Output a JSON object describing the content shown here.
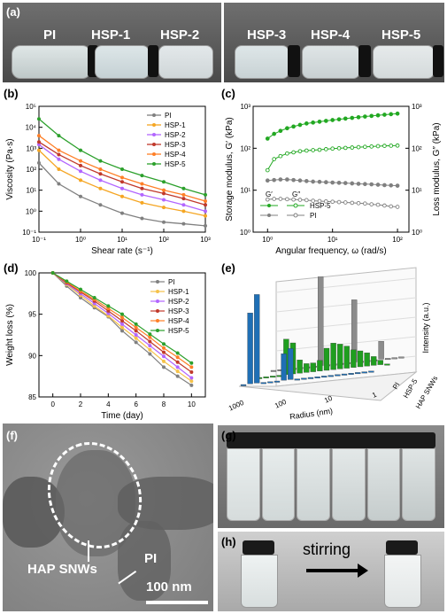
{
  "panel_labels": {
    "a": "(a)",
    "b": "(b)",
    "c": "(c)",
    "d": "(d)",
    "e": "(e)",
    "f": "(f)",
    "g": "(g)",
    "h": "(h)"
  },
  "photo_a": {
    "labels": [
      "PI",
      "HSP-1",
      "HSP-2",
      "HSP-3",
      "HSP-4",
      "HSP-5"
    ]
  },
  "photo_f": {
    "annotation_hap": "HAP SNWs",
    "annotation_pi": "PI",
    "scale_bar": "100 nm"
  },
  "photo_h": {
    "arrow_label": "stirring"
  },
  "chart_data": [
    {
      "id": "b",
      "type": "line",
      "xlabel": "Shear rate (s⁻¹)",
      "ylabel": "Viscosity (Pa·s)",
      "x_scale": "log",
      "y_scale": "log",
      "xlim": [
        0.1,
        1000
      ],
      "ylim": [
        0.1,
        100000
      ],
      "x_ticks": [
        "10⁻¹",
        "10⁰",
        "10¹",
        "10²",
        "10³"
      ],
      "y_ticks": [
        "10⁻¹",
        "10⁰",
        "10¹",
        "10²",
        "10³",
        "10⁴",
        "10⁵"
      ],
      "legend": "top-right",
      "x": [
        0.1,
        0.3,
        1,
        3,
        10,
        30,
        100,
        300,
        1000
      ],
      "series": [
        {
          "name": "PI",
          "color": "#808080",
          "values": [
            200,
            20,
            5,
            2,
            0.8,
            0.45,
            0.3,
            0.25,
            0.2
          ]
        },
        {
          "name": "HSP-1",
          "color": "#f5a623",
          "values": [
            800,
            100,
            30,
            12,
            5,
            2.5,
            1.5,
            1,
            0.6
          ]
        },
        {
          "name": "HSP-2",
          "color": "#b266ff",
          "values": [
            1500,
            300,
            80,
            30,
            12,
            6,
            3.5,
            2,
            1
          ]
        },
        {
          "name": "HSP-3",
          "color": "#c0392b",
          "values": [
            2000,
            500,
            150,
            60,
            25,
            12,
            7,
            4,
            2
          ]
        },
        {
          "name": "HSP-4",
          "color": "#ff7f27",
          "values": [
            4000,
            800,
            250,
            100,
            40,
            20,
            10,
            6,
            3
          ]
        },
        {
          "name": "HSP-5",
          "color": "#2ca02c",
          "values": [
            25000,
            4000,
            800,
            250,
            100,
            50,
            25,
            12,
            6
          ]
        }
      ]
    },
    {
      "id": "c",
      "type": "scatter",
      "xlabel": "Angular frequency, ω (rad/s)",
      "ylabel": "Storage modulus, G′ (kPa)",
      "ylabel_right": "Loss modulus, G″ (kPa)",
      "x_scale": "log",
      "y_scale": "log",
      "xlim": [
        0.6,
        150
      ],
      "ylim": [
        1,
        1000
      ],
      "x_ticks": [
        "10⁰",
        "10¹",
        "10²"
      ],
      "y_ticks": [
        "10⁰",
        "10¹",
        "10²",
        "10³"
      ],
      "legend_headers": [
        "G′",
        "G″"
      ],
      "legend_rows": [
        "HSP-5",
        "PI"
      ],
      "x": [
        1,
        1.26,
        1.58,
        2,
        2.51,
        3.16,
        3.98,
        5.01,
        6.31,
        7.94,
        10,
        12.6,
        15.8,
        20,
        25.1,
        31.6,
        39.8,
        50.1,
        63.1,
        79.4,
        100
      ],
      "series": [
        {
          "name": "HSP-5 G′",
          "color": "#22a822",
          "filled": true,
          "values": [
            170,
            220,
            260,
            300,
            330,
            360,
            390,
            410,
            430,
            450,
            470,
            490,
            510,
            530,
            550,
            570,
            590,
            610,
            630,
            650,
            670
          ]
        },
        {
          "name": "HSP-5 G″",
          "color": "#22a822",
          "filled": false,
          "values": [
            30,
            55,
            65,
            75,
            80,
            85,
            88,
            90,
            92,
            95,
            98,
            100,
            102,
            104,
            106,
            108,
            110,
            112,
            114,
            115,
            116
          ]
        },
        {
          "name": "PI G′",
          "color": "#808080",
          "filled": true,
          "values": [
            17,
            17.5,
            18,
            18,
            17.5,
            17,
            16.5,
            16,
            15.8,
            15.5,
            15.2,
            15,
            14.8,
            14.5,
            14.2,
            14,
            13.8,
            13.5,
            13.2,
            13,
            12.8
          ]
        },
        {
          "name": "PI G″",
          "color": "#808080",
          "filled": false,
          "values": [
            6,
            6.2,
            6.2,
            6.1,
            6,
            5.9,
            5.8,
            5.6,
            5.5,
            5.4,
            5.3,
            5.2,
            5.1,
            5,
            4.9,
            4.8,
            4.6,
            4.5,
            4.3,
            4.1,
            4
          ]
        }
      ]
    },
    {
      "id": "d",
      "type": "line",
      "xlabel": "Time (day)",
      "ylabel": "Weight loss (%)",
      "xlim": [
        -1,
        11
      ],
      "ylim": [
        85,
        100
      ],
      "x_ticks": [
        "0",
        "2",
        "4",
        "6",
        "8",
        "10"
      ],
      "y_ticks": [
        "85",
        "90",
        "95",
        "100"
      ],
      "legend": "top-right",
      "x": [
        0,
        1,
        2,
        3,
        4,
        5,
        6,
        7,
        8,
        9,
        10
      ],
      "series": [
        {
          "name": "PI",
          "color": "#808080",
          "values": [
            100,
            98.4,
            97,
            95.8,
            94.7,
            93,
            91.6,
            90.2,
            88.6,
            87.5,
            86.4
          ]
        },
        {
          "name": "HSP-1",
          "color": "#f5c24a",
          "values": [
            100,
            98.6,
            97.3,
            96,
            94.8,
            93.4,
            92.1,
            90.7,
            89.3,
            88.1,
            86.9
          ]
        },
        {
          "name": "HSP-2",
          "color": "#b266ff",
          "values": [
            100,
            98.7,
            97.5,
            96.3,
            95.1,
            93.8,
            92.5,
            91.2,
            89.9,
            88.6,
            87.3
          ]
        },
        {
          "name": "HSP-3",
          "color": "#c0392b",
          "values": [
            100,
            98.8,
            97.7,
            96.6,
            95.4,
            94.2,
            93,
            91.7,
            90.4,
            89.2,
            88
          ]
        },
        {
          "name": "HSP-4",
          "color": "#ff7f27",
          "values": [
            100,
            98.9,
            97.8,
            96.8,
            95.7,
            94.6,
            93.4,
            92.2,
            90.9,
            89.8,
            88.6
          ]
        },
        {
          "name": "HSP-5",
          "color": "#2ca02c",
          "values": [
            100,
            99,
            98,
            97,
            96,
            95,
            93.8,
            92.6,
            91.4,
            90.3,
            89.1
          ]
        }
      ]
    },
    {
      "id": "e",
      "type": "bar",
      "title": "",
      "xlabel": "Radius (nm)",
      "ylabel": "Intensity (a.u.)",
      "x_ticks": [
        "1000",
        "100",
        "10",
        "1"
      ],
      "rows": [
        "PI",
        "HSP-5",
        "HAP SNWs"
      ],
      "row_colors": [
        "#8c8c8c",
        "#1f9e1f",
        "#1f6fb5"
      ],
      "series": [
        {
          "name": "HAP SNWs",
          "values": [
            0,
            0.8,
            1.0,
            0,
            0,
            0,
            0.3,
            0.35,
            0,
            0,
            0,
            0,
            0,
            0,
            0,
            0,
            0,
            0,
            0,
            0
          ]
        },
        {
          "name": "HSP-5",
          "values": [
            0,
            0,
            0,
            0,
            0.4,
            0.35,
            0.15,
            0.1,
            0.1,
            0.12,
            0.25,
            0.3,
            0.28,
            0.25,
            0.2,
            0.18,
            0.15,
            0.1,
            0.05,
            0
          ]
        },
        {
          "name": "PI",
          "values": [
            0,
            0,
            0,
            0,
            0,
            0,
            0,
            1.0,
            0,
            0,
            0,
            0,
            0.7,
            0,
            0,
            0,
            0.2,
            0,
            0,
            0
          ]
        }
      ]
    }
  ]
}
